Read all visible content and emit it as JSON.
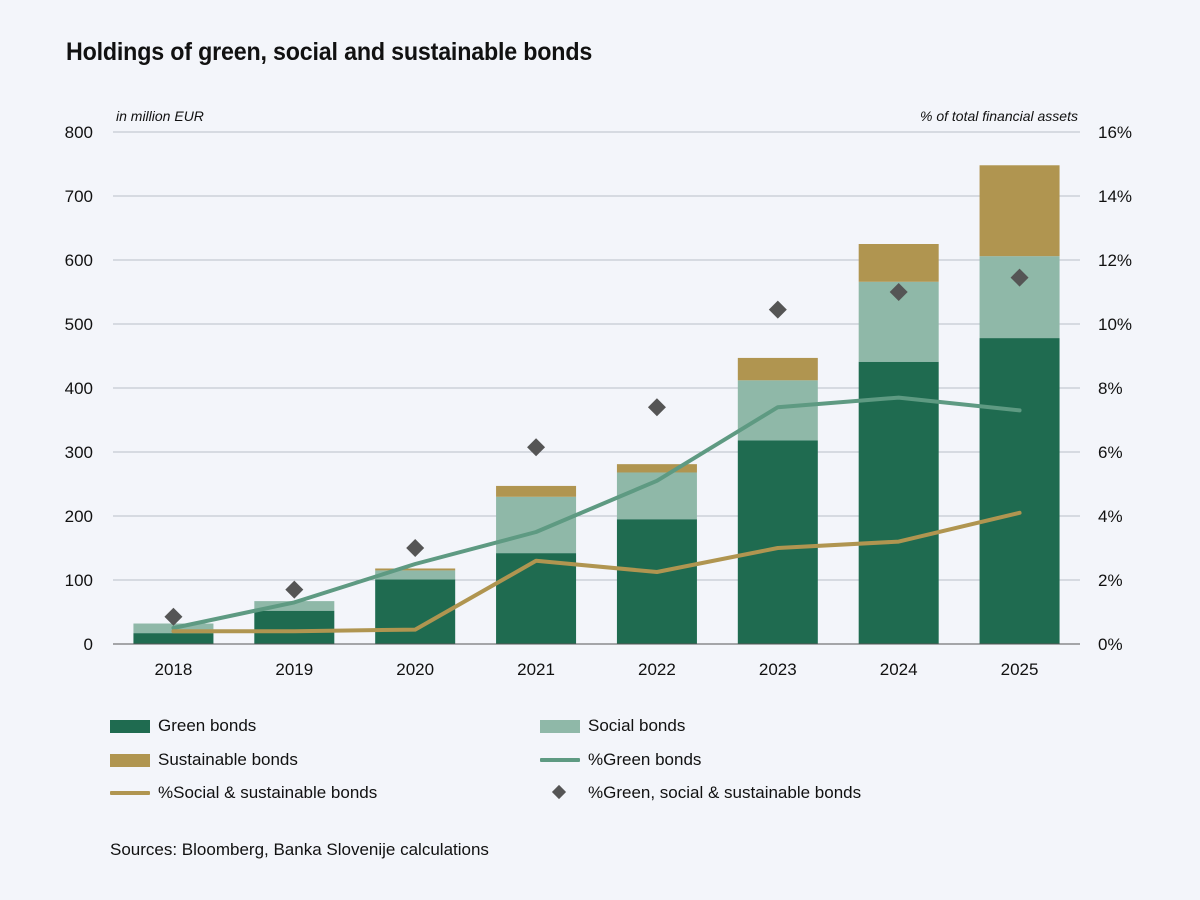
{
  "title": "Holdings of green, social and sustainable bonds",
  "source": "Sources: Bloomberg, Banka Slovenije calculations",
  "chart_data": {
    "type": "bar",
    "stacked": true,
    "title": "Holdings of green, social and sustainable bonds",
    "ylabel_left": "in million EUR",
    "ylabel_right": "% of total financial assets",
    "ylim_left": [
      0,
      800
    ],
    "ylim_right": [
      0,
      16
    ],
    "yticks_left": [
      "0",
      "100",
      "200",
      "300",
      "400",
      "500",
      "600",
      "700",
      "800"
    ],
    "yticks_right": [
      "0%",
      "2%",
      "4%",
      "6%",
      "8%",
      "10%",
      "12%",
      "14%",
      "16%"
    ],
    "categories": [
      "2018",
      "2019",
      "2020",
      "2021",
      "2022",
      "2023",
      "2024",
      "2025"
    ],
    "grid": true,
    "legend_position": "bottom",
    "series": [
      {
        "name": "Green bonds",
        "type": "bar",
        "axis": "left",
        "color": "#1f6b50",
        "values": [
          17,
          52,
          101,
          142,
          195,
          318,
          441,
          478
        ]
      },
      {
        "name": "Social bonds",
        "type": "bar",
        "axis": "left",
        "color": "#8fb8a8",
        "values": [
          15,
          15,
          14,
          88,
          73,
          94,
          125,
          128
        ]
      },
      {
        "name": "Sustainable bonds",
        "type": "bar",
        "axis": "left",
        "color": "#b09550",
        "values": [
          0,
          0,
          3,
          17,
          13,
          35,
          59,
          142
        ]
      },
      {
        "name": "%Green bonds",
        "type": "line",
        "axis": "right",
        "color": "#5e9a82",
        "values": [
          0.5,
          1.3,
          2.5,
          3.5,
          5.1,
          7.4,
          7.7,
          7.3
        ]
      },
      {
        "name": "%Social & sustainable bonds",
        "type": "line",
        "axis": "right",
        "color": "#b09550",
        "values": [
          0.4,
          0.4,
          0.45,
          2.6,
          2.25,
          3.0,
          3.2,
          4.1
        ]
      },
      {
        "name": "%Green, social & sustainable bonds",
        "type": "scatter",
        "axis": "right",
        "color": "#555555",
        "values": [
          0.85,
          1.7,
          3.0,
          6.15,
          7.4,
          10.45,
          11.0,
          11.45
        ]
      }
    ]
  }
}
